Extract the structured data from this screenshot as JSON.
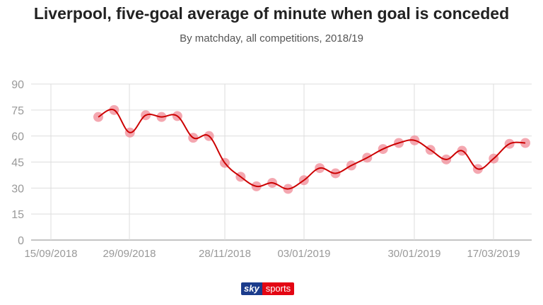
{
  "chart_data": {
    "type": "line",
    "title": "Liverpool, five-goal average of minute when goal is conceded",
    "subtitle": "By matchday, all competitions, 2018/19",
    "xlabel": "",
    "ylabel": "",
    "ylim": [
      0,
      90
    ],
    "yticks": [
      "0",
      "15",
      "30",
      "45",
      "60",
      "75",
      "90"
    ],
    "xticks": [
      "15/09/2018",
      "29/09/2018",
      "28/11/2018",
      "03/01/2019",
      "30/01/2019",
      "17/03/2019"
    ],
    "grid": true,
    "legend": "none",
    "series": [
      {
        "values": [
          71,
          75,
          62,
          72,
          71,
          71.5,
          59,
          60,
          44.5,
          36.5,
          31,
          33,
          29.5,
          34.5,
          41.5,
          38.5,
          43,
          47.5,
          52.5,
          56,
          57.5,
          52,
          46.5,
          51.5,
          41,
          47,
          55.5,
          56
        ]
      }
    ],
    "colors": {
      "line": "#cc0000",
      "marker": "#f08a96",
      "grid": "#dddddd",
      "axis": "#888888",
      "text": "#999999"
    }
  },
  "logo": {
    "part1": "sky",
    "part2": "sports"
  }
}
